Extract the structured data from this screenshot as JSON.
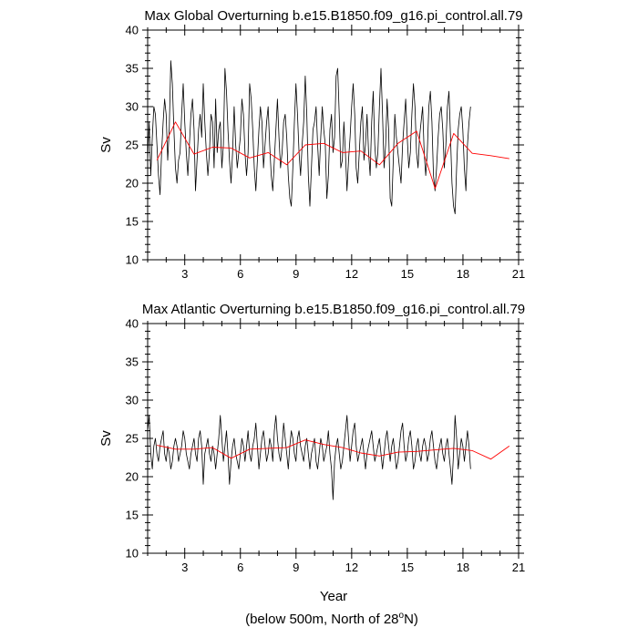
{
  "chart_data": [
    {
      "type": "line",
      "title": "Max Global Overturning b.e15.B1850.f09_g16.pi_control.all.79",
      "xlabel": "",
      "ylabel": "Sv",
      "xlim": [
        1,
        21
      ],
      "ylim": [
        10,
        40
      ],
      "x_ticks": [
        3,
        6,
        9,
        12,
        15,
        18,
        21
      ],
      "y_ticks": [
        10,
        15,
        20,
        25,
        30,
        35,
        40
      ],
      "series": [
        {
          "name": "monthly",
          "color": "#000000",
          "x_start": 1.0,
          "x_step": 0.0833,
          "values": [
            23,
            28,
            21,
            26,
            30,
            29,
            25,
            21,
            18.5,
            24,
            28,
            31,
            29,
            23,
            27,
            36,
            33,
            27,
            22,
            20,
            23,
            24,
            29,
            33,
            28,
            24,
            21,
            25,
            29,
            31,
            27,
            19,
            23,
            27,
            29,
            26,
            33,
            28,
            24,
            21,
            24,
            29,
            28,
            22,
            31,
            24,
            27,
            28,
            22,
            25,
            35,
            32,
            27,
            23,
            20,
            24,
            30,
            25,
            22,
            24,
            26,
            31,
            29,
            24,
            21,
            24,
            33,
            31,
            27,
            22,
            19,
            23,
            27,
            30,
            28,
            22,
            25,
            28,
            30,
            25,
            21,
            19,
            23,
            27,
            31,
            26,
            22,
            24,
            28,
            29,
            26,
            21,
            18,
            17,
            22,
            28,
            33,
            29,
            24,
            21,
            25,
            28,
            34,
            29,
            21,
            17,
            22,
            27,
            28,
            30,
            25,
            21,
            26,
            30,
            27,
            25,
            18,
            21,
            27,
            29,
            24,
            26,
            34,
            35,
            29,
            22,
            23,
            28,
            24,
            19,
            23,
            26,
            30,
            33,
            29,
            22,
            20,
            24,
            28,
            30,
            23,
            25,
            29,
            24,
            21,
            28,
            32,
            25,
            22,
            24,
            30,
            35,
            29,
            22,
            25,
            31,
            27,
            18,
            17,
            23,
            29,
            26,
            24,
            22,
            20,
            25,
            28,
            31,
            26,
            22,
            24,
            29,
            33,
            30,
            24,
            22,
            26,
            28,
            30,
            24,
            21,
            24,
            30,
            32,
            28,
            21,
            19,
            22,
            26,
            29,
            30,
            27,
            22,
            25,
            30,
            32,
            26,
            20,
            17,
            16,
            22,
            27,
            29,
            30,
            27,
            22,
            19,
            25,
            28,
            30
          ]
        },
        {
          "name": "annual mean",
          "color": "#ff0000",
          "x": [
            1.5,
            2.5,
            3.5,
            4.5,
            5.5,
            6.5,
            7.5,
            8.5,
            9.5,
            10.5,
            11.5,
            12.5,
            13.5,
            14.5,
            15.5,
            16.5,
            17.5,
            18.5,
            19.5,
            20.5
          ],
          "values": [
            23.0,
            28.0,
            23.8,
            24.7,
            24.6,
            23.3,
            24.0,
            22.4,
            25.0,
            25.2,
            24.0,
            24.2,
            22.4,
            25.2,
            26.8,
            19.3,
            26.5,
            23.9,
            23.6,
            23.2
          ]
        }
      ]
    },
    {
      "type": "line",
      "title": "Max Atlantic Overturning b.e15.B1850.f09_g16.pi_control.all.79",
      "xlabel": "Year",
      "ylabel": "Sv",
      "xlim": [
        1,
        21
      ],
      "ylim": [
        10,
        40
      ],
      "x_ticks": [
        3,
        6,
        9,
        12,
        15,
        18,
        21
      ],
      "y_ticks": [
        10,
        15,
        20,
        25,
        30,
        35,
        40
      ],
      "series": [
        {
          "name": "monthly",
          "color": "#000000",
          "x_start": 1.0,
          "x_step": 0.0833,
          "values": [
            26,
            28,
            23,
            21,
            24,
            25,
            23,
            22,
            24,
            25,
            26,
            23,
            22,
            24,
            23,
            21,
            22,
            24,
            25,
            24,
            22,
            23,
            24,
            26,
            25,
            23,
            22,
            21,
            23,
            24,
            25,
            23,
            22,
            25,
            26,
            24,
            19,
            23,
            24,
            25,
            23,
            22,
            24,
            23,
            21,
            23,
            25,
            28,
            25,
            22,
            24,
            26,
            23,
            19,
            22,
            24,
            25,
            23,
            22,
            21,
            23,
            25,
            24,
            22,
            24,
            26,
            23,
            22,
            24,
            25,
            27,
            24,
            21,
            23,
            25,
            26,
            24,
            22,
            23,
            25,
            24,
            22,
            26,
            28,
            25,
            23,
            22,
            24,
            27,
            25,
            23,
            21,
            24,
            26,
            25,
            23,
            22,
            25,
            26,
            24,
            23,
            22,
            24,
            25,
            23,
            21,
            23,
            24,
            25,
            22,
            21,
            23,
            25,
            24,
            22,
            23,
            24,
            26,
            23,
            21,
            17,
            22,
            24,
            25,
            23,
            21,
            22,
            24,
            26,
            28,
            25,
            22,
            24,
            26,
            27,
            24,
            22,
            23,
            24,
            25,
            23,
            21,
            23,
            24,
            25,
            26,
            24,
            22,
            23,
            24,
            25,
            23,
            21,
            23,
            25,
            26,
            24,
            22,
            24,
            25,
            23,
            21,
            22,
            24,
            26,
            27,
            24,
            22,
            23,
            25,
            26,
            24,
            21,
            22,
            24,
            25,
            23,
            22,
            24,
            25,
            24,
            22,
            23,
            25,
            26,
            24,
            22,
            21,
            23,
            24,
            25,
            23,
            22,
            24,
            25,
            23,
            21,
            19,
            23,
            28,
            25,
            21,
            23,
            25,
            24,
            22,
            24,
            26,
            24,
            21
          ]
        },
        {
          "name": "annual mean",
          "color": "#ff0000",
          "x": [
            1.5,
            2.5,
            3.5,
            4.5,
            5.5,
            6.5,
            7.5,
            8.5,
            9.5,
            10.5,
            11.5,
            12.5,
            13.5,
            14.5,
            15.5,
            16.5,
            17.5,
            18.5,
            19.5,
            20.5
          ],
          "values": [
            24.1,
            23.6,
            23.6,
            23.8,
            22.4,
            23.6,
            23.7,
            23.8,
            24.8,
            24.2,
            23.8,
            23.1,
            22.7,
            23.2,
            23.3,
            23.5,
            23.7,
            23.4,
            22.3,
            24.0
          ]
        }
      ]
    }
  ],
  "footer": {
    "prefix": "(below 500m, North of 28",
    "degree": "o",
    "suffix": "N)"
  }
}
